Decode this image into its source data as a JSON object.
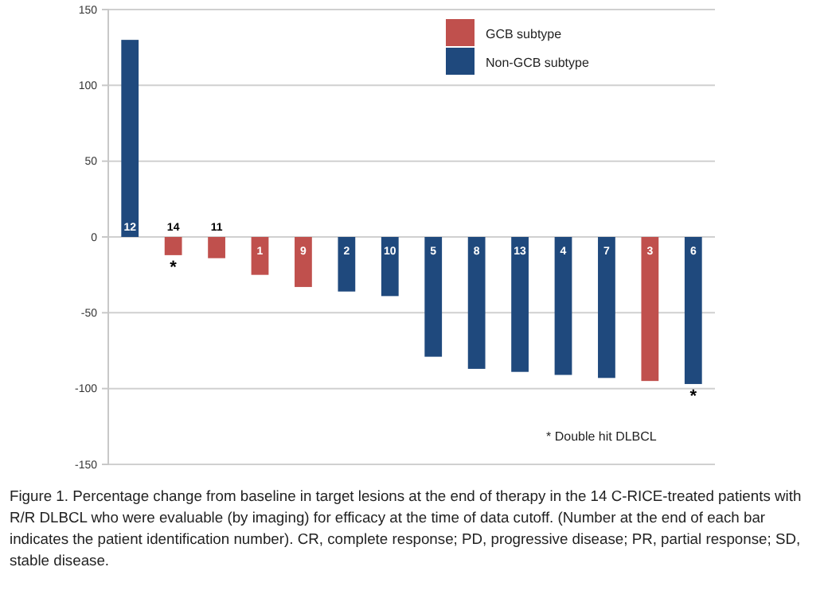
{
  "chart_data": {
    "type": "bar",
    "categories": [
      "12",
      "14",
      "11",
      "1",
      "9",
      "2",
      "10",
      "5",
      "8",
      "13",
      "4",
      "7",
      "3",
      "6"
    ],
    "series": [
      {
        "name": "GCB subtype",
        "color": "#c0504d",
        "values": [
          null,
          -12,
          -14,
          -25,
          -33,
          null,
          null,
          null,
          null,
          null,
          null,
          null,
          -95,
          null
        ]
      },
      {
        "name": "Non-GCB subtype",
        "color": "#1f497d",
        "values": [
          130,
          null,
          null,
          null,
          null,
          -36,
          -39,
          -79,
          -87,
          -89,
          -91,
          -93,
          null,
          -97
        ]
      }
    ],
    "ylim": [
      -150,
      150
    ],
    "yticks": [
      -150,
      -100,
      -50,
      0,
      50,
      100,
      150
    ],
    "grid": "y",
    "legend": "top right",
    "tick_labels": "y",
    "annotations": [
      {
        "text": "*",
        "x": "14",
        "y": -12
      },
      {
        "text": "*",
        "x": "6",
        "y": -97
      },
      "* Double hit DLBCL",
      "Figure 1. Percentage change from baseline in target lesions at the end of therapy in the 14 C-RICE-treated patients with R/R DLBCL who were evaluable (by imaging) for efficacy at the time of data cutoff. (Number at the end of each bar indicates the patient identification number). CR, complete response; PD, progressive disease; PR, partial response; SD, stable disease."
    ]
  }
}
